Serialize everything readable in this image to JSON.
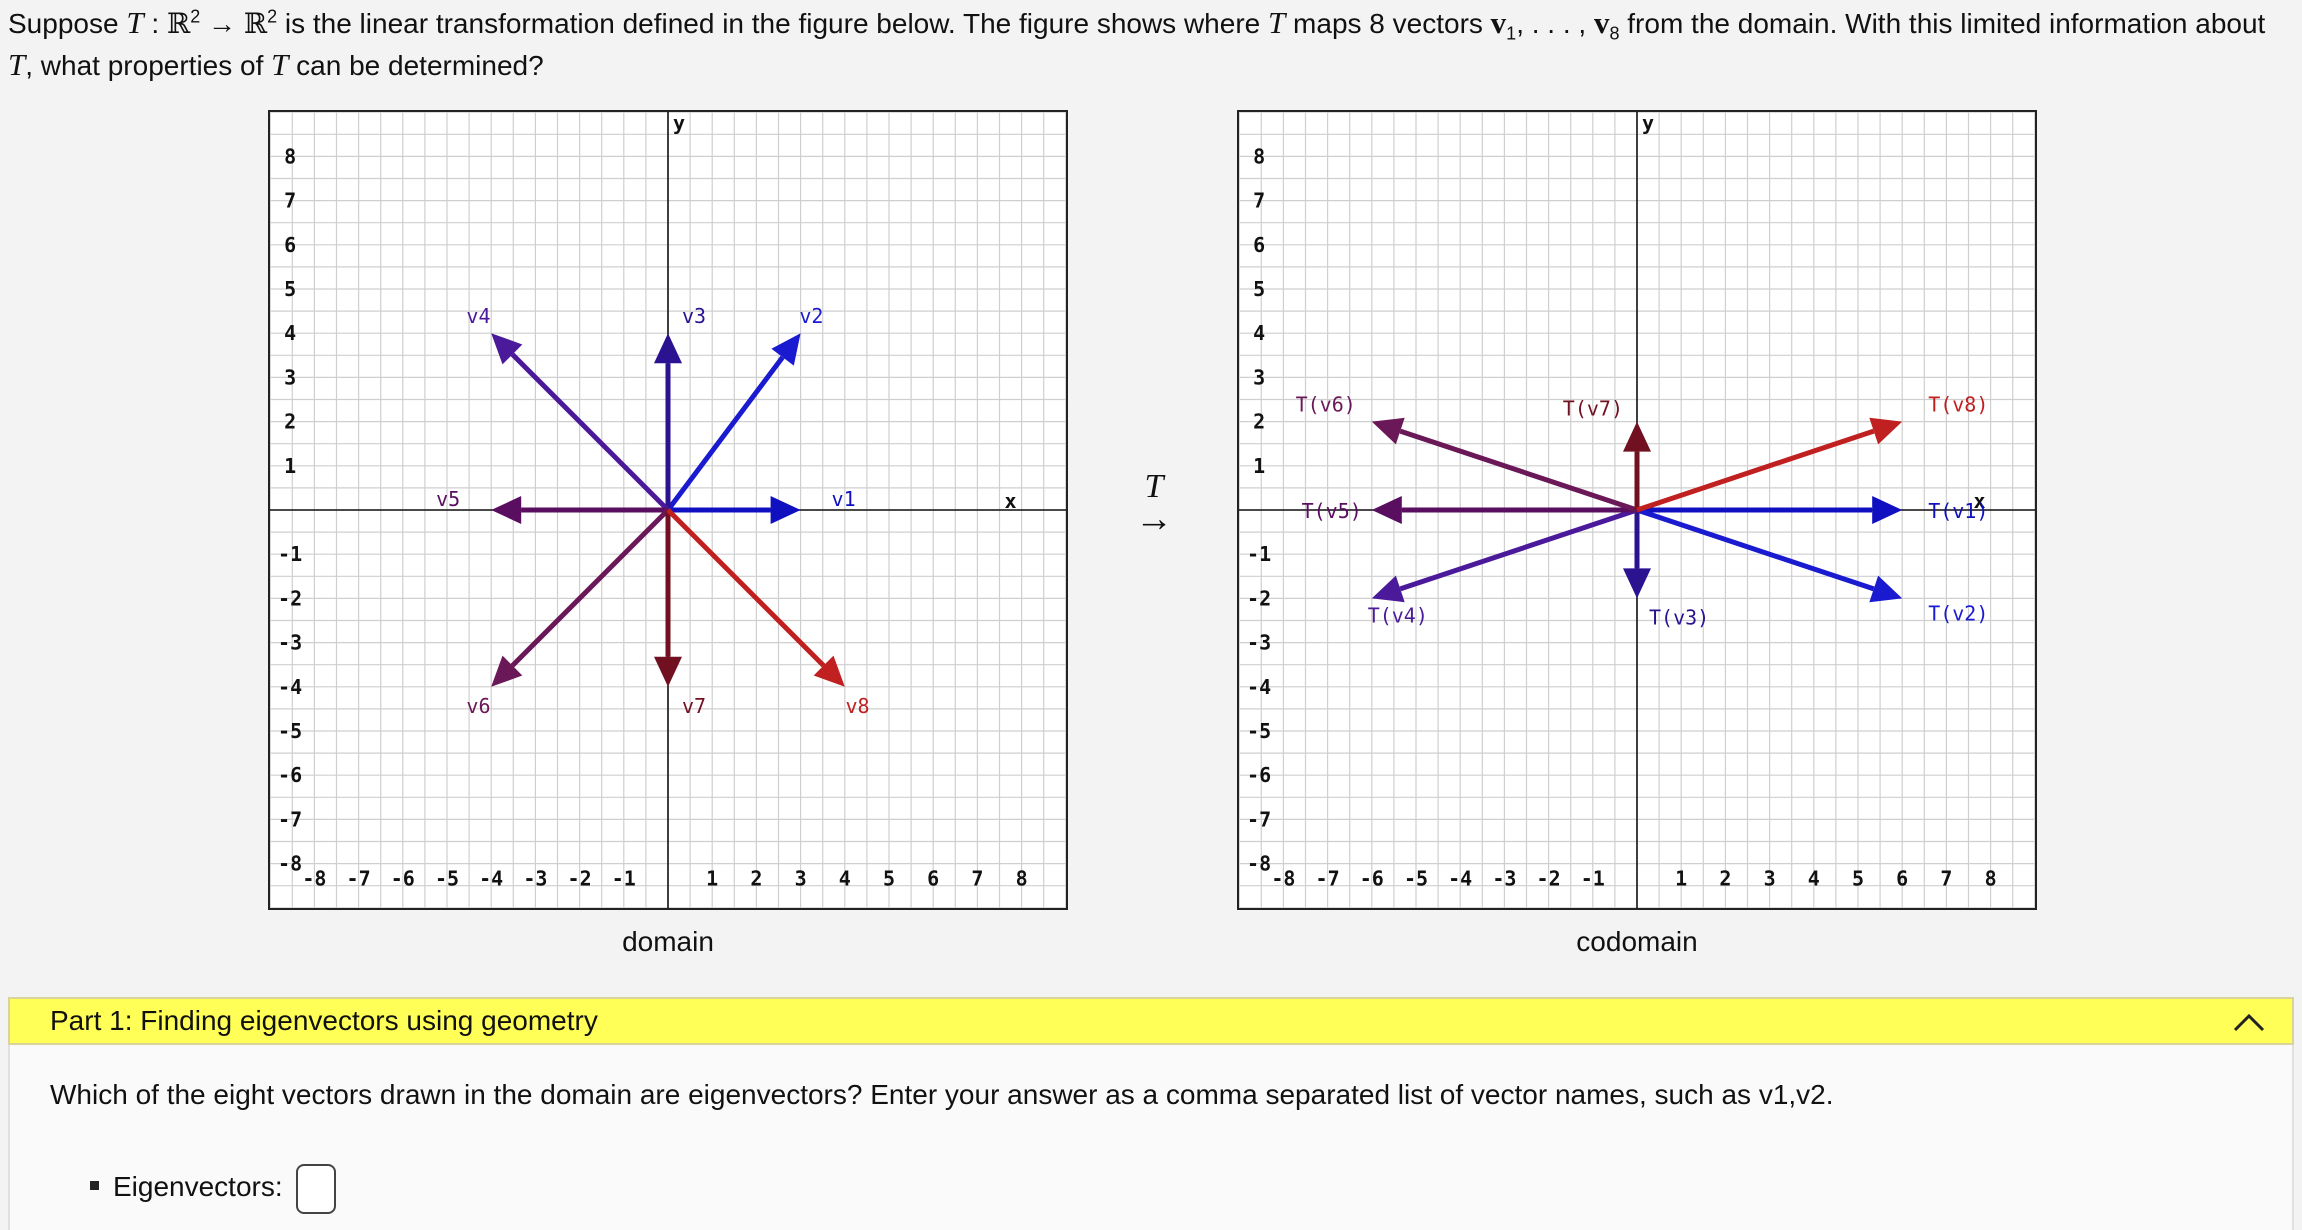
{
  "question": {
    "p1": "Suppose",
    "T": "T",
    "colon": " : ",
    "R": "ℝ",
    "sup2": "2",
    "mapsto": " → ",
    "p2": " is the linear transformation defined in the figure below. The figure shows where ",
    "p3": " maps 8 vectors ",
    "v": "v",
    "sub1": "1",
    "dots": ", . . . , ",
    "sub8": "8",
    "p4": " from the domain. With this limited information about ",
    "p5": ", what properties of ",
    "p6": " can be determined?"
  },
  "figure": {
    "arrow_label": "T",
    "arrow_glyph": "→",
    "domain_caption": "domain",
    "codomain_caption": "codomain",
    "axis_x": "x",
    "axis_y": "y",
    "ticks_x": [
      "-8",
      "-7",
      "-6",
      "-5",
      "-4",
      "-3",
      "-2",
      "-1",
      "1",
      "2",
      "3",
      "4",
      "5",
      "6",
      "7",
      "8"
    ],
    "ticks_y": [
      "8",
      "7",
      "6",
      "5",
      "4",
      "3",
      "2",
      "1",
      "-1",
      "-2",
      "-3",
      "-4",
      "-5",
      "-6",
      "-7",
      "-8"
    ],
    "domain_vectors": [
      {
        "name": "v1",
        "x": 3,
        "y": 0,
        "color": "#1010c0"
      },
      {
        "name": "v2",
        "x": 3,
        "y": 4,
        "color": "#1a1ad0"
      },
      {
        "name": "v3",
        "x": 0,
        "y": 4,
        "color": "#2a1290"
      },
      {
        "name": "v4",
        "x": -4,
        "y": 4,
        "color": "#4a1a9a"
      },
      {
        "name": "v5",
        "x": -4,
        "y": 0,
        "color": "#5a0e60"
      },
      {
        "name": "v6",
        "x": -4,
        "y": -4,
        "color": "#6a1858"
      },
      {
        "name": "v7",
        "x": 0,
        "y": -4,
        "color": "#701020"
      },
      {
        "name": "v8",
        "x": 4,
        "y": -4,
        "color": "#c02020"
      }
    ],
    "codomain_vectors": [
      {
        "name": "T(v1)",
        "x": 6,
        "y": 0,
        "color": "#1010c0"
      },
      {
        "name": "T(v2)",
        "x": 6,
        "y": -2,
        "color": "#1a1ad0"
      },
      {
        "name": "T(v3)",
        "x": 0,
        "y": -2,
        "color": "#2a1290"
      },
      {
        "name": "T(v4)",
        "x": -6,
        "y": -2,
        "color": "#4a1a9a"
      },
      {
        "name": "T(v5)",
        "x": -6,
        "y": 0,
        "color": "#5a0e60"
      },
      {
        "name": "T(v6)",
        "x": -6,
        "y": 2,
        "color": "#6a1858"
      },
      {
        "name": "T(v7)",
        "x": 0,
        "y": 2,
        "color": "#701020"
      },
      {
        "name": "T(v8)",
        "x": 6,
        "y": 2,
        "color": "#c02020"
      }
    ]
  },
  "part1": {
    "title": "Part 1: Finding eigenvectors using geometry",
    "prompt": "Which of the eight vectors drawn in the domain are eigenvectors? Enter your answer as a comma separated list of vector names, such as v1,v2.",
    "answer_label": "Eigenvectors:",
    "answer_value": ""
  }
}
